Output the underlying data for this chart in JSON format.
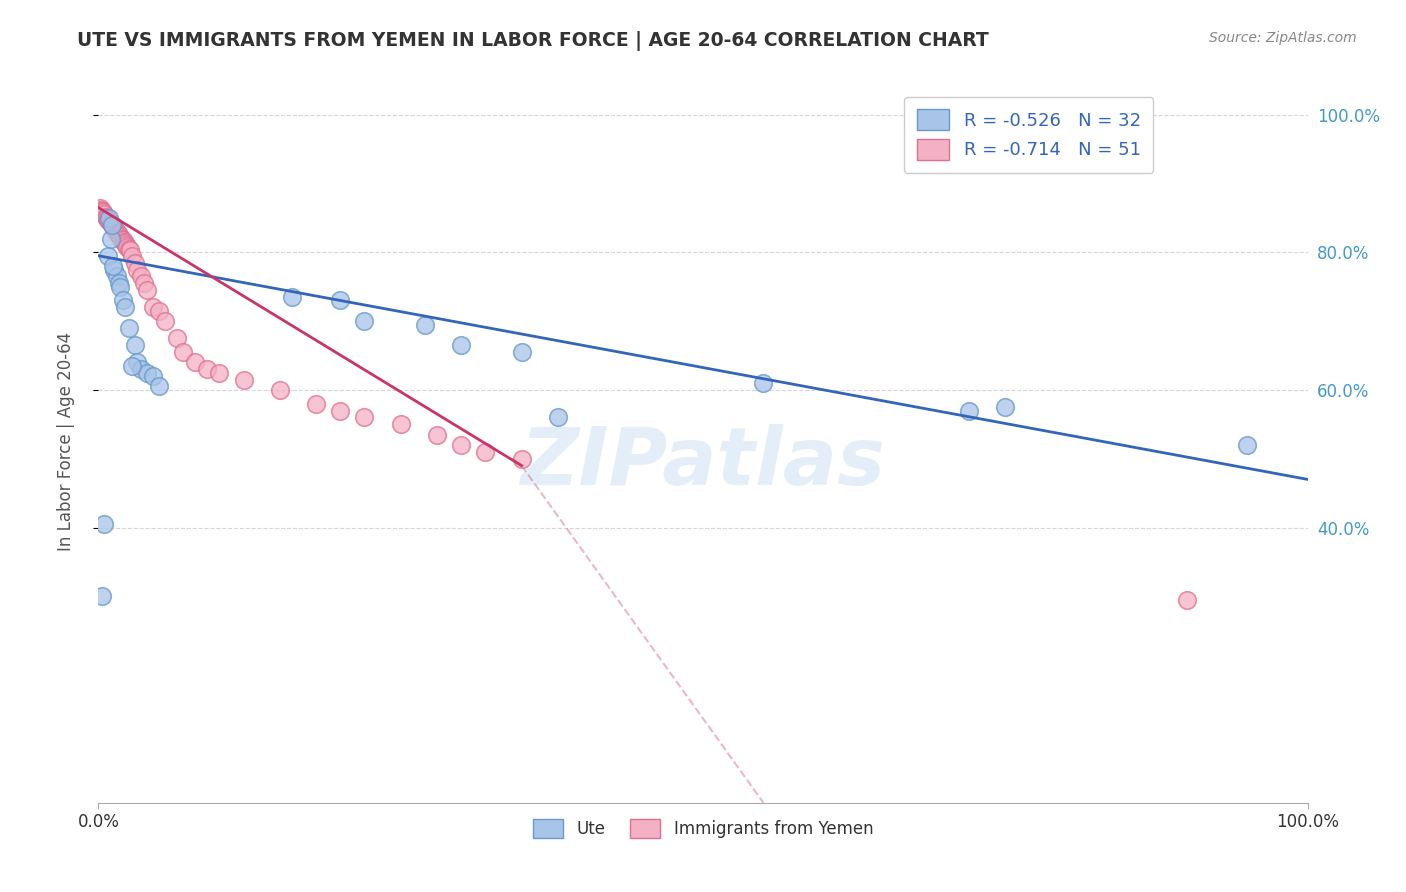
{
  "title": "UTE VS IMMIGRANTS FROM YEMEN IN LABOR FORCE | AGE 20-64 CORRELATION CHART",
  "source": "Source: ZipAtlas.com",
  "ylabel": "In Labor Force | Age 20-64",
  "watermark": "ZIPatlas",
  "legend_ute": "R = -0.526   N = 32",
  "legend_yem": "R = -0.714   N = 51",
  "legend_label1": "Ute",
  "legend_label2": "Immigrants from Yemen",
  "ute_color": "#a8c4e8",
  "ute_edge_color": "#6699cc",
  "yem_color": "#f4b0c5",
  "yem_edge_color": "#e07090",
  "ute_line_color": "#3366bb",
  "yem_line_color": "#cc3366",
  "ute_scatter_x": [
    0.005,
    0.008,
    0.009,
    0.01,
    0.011,
    0.013,
    0.015,
    0.017,
    0.018,
    0.02,
    0.022,
    0.025,
    0.03,
    0.032,
    0.035,
    0.04,
    0.045,
    0.05,
    0.16,
    0.2,
    0.22,
    0.27,
    0.3,
    0.35,
    0.55,
    0.72,
    0.75,
    0.003,
    0.012,
    0.028,
    0.38,
    0.95
  ],
  "ute_scatter_y": [
    0.405,
    0.795,
    0.85,
    0.82,
    0.84,
    0.775,
    0.765,
    0.755,
    0.75,
    0.73,
    0.72,
    0.69,
    0.665,
    0.64,
    0.63,
    0.625,
    0.62,
    0.605,
    0.735,
    0.73,
    0.7,
    0.695,
    0.665,
    0.655,
    0.61,
    0.57,
    0.575,
    0.3,
    0.78,
    0.635,
    0.56,
    0.52
  ],
  "yem_scatter_x": [
    0.001,
    0.002,
    0.003,
    0.004,
    0.005,
    0.006,
    0.007,
    0.008,
    0.009,
    0.01,
    0.011,
    0.012,
    0.013,
    0.014,
    0.015,
    0.016,
    0.017,
    0.018,
    0.019,
    0.02,
    0.021,
    0.022,
    0.023,
    0.024,
    0.025,
    0.026,
    0.028,
    0.03,
    0.032,
    0.035,
    0.038,
    0.04,
    0.045,
    0.05,
    0.055,
    0.065,
    0.07,
    0.08,
    0.09,
    0.1,
    0.12,
    0.15,
    0.18,
    0.2,
    0.22,
    0.25,
    0.28,
    0.3,
    0.32,
    0.35,
    0.9
  ],
  "yem_scatter_y": [
    0.865,
    0.862,
    0.86,
    0.858,
    0.855,
    0.852,
    0.85,
    0.847,
    0.845,
    0.842,
    0.84,
    0.838,
    0.835,
    0.833,
    0.83,
    0.827,
    0.825,
    0.822,
    0.82,
    0.818,
    0.815,
    0.813,
    0.81,
    0.808,
    0.805,
    0.803,
    0.795,
    0.785,
    0.775,
    0.765,
    0.755,
    0.745,
    0.72,
    0.715,
    0.7,
    0.675,
    0.655,
    0.64,
    0.63,
    0.625,
    0.615,
    0.6,
    0.58,
    0.57,
    0.56,
    0.55,
    0.535,
    0.52,
    0.51,
    0.5,
    0.295
  ],
  "ute_line_x": [
    0.0,
    1.0
  ],
  "ute_line_y": [
    0.795,
    0.47
  ],
  "yem_line_x": [
    0.0,
    0.35
  ],
  "yem_line_y": [
    0.865,
    0.49
  ],
  "ext_line_x": [
    0.35,
    0.55
  ],
  "ext_line_y": [
    0.49,
    0.0
  ],
  "xlim": [
    0.0,
    1.0
  ],
  "ylim": [
    0.0,
    1.05
  ],
  "yticks": [
    0.4,
    0.6,
    0.8,
    1.0
  ],
  "ytick_labels": [
    "40.0%",
    "60.0%",
    "80.0%",
    "100.0%"
  ],
  "xticks": [
    0.0,
    1.0
  ],
  "xtick_labels": [
    "0.0%",
    "100.0%"
  ]
}
